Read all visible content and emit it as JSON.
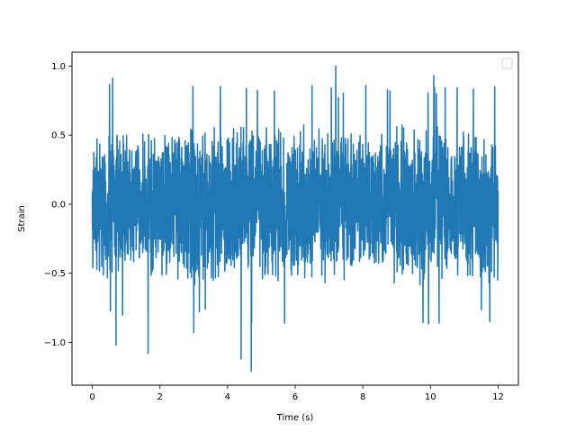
{
  "chart_data": {
    "type": "line",
    "title": "",
    "xlabel": "Time (s)",
    "ylabel": "Strain",
    "xlim": [
      -0.6,
      12.6
    ],
    "ylim": [
      -1.31,
      1.1
    ],
    "x_ticks": [
      0,
      2,
      4,
      6,
      8,
      10,
      12
    ],
    "y_ticks": [
      1.0,
      0.5,
      0.0,
      -0.5,
      -1.0
    ],
    "x_tick_labels": [
      "0",
      "2",
      "4",
      "6",
      "8",
      "10",
      "12"
    ],
    "y_tick_labels": [
      "1.0",
      "0.5",
      "0.0",
      "−0.5",
      "−1.0"
    ],
    "grid": false,
    "legend": {
      "placement": "top-right",
      "entries": []
    },
    "series": [
      {
        "color": "#1f77b4",
        "x_range": [
          0,
          12
        ],
        "sample_count": 2400,
        "typical_range": [
          -0.55,
          0.55
        ],
        "max_value": 1.0,
        "min_value": -1.21,
        "notable_extremes": [
          {
            "x": 0.6,
            "y": 0.91
          },
          {
            "x": 0.7,
            "y": -1.02
          },
          {
            "x": 1.65,
            "y": -1.08
          },
          {
            "x": 3.0,
            "y": -0.93
          },
          {
            "x": 4.4,
            "y": -1.12
          },
          {
            "x": 4.7,
            "y": -1.21
          },
          {
            "x": 7.2,
            "y": 1.0
          },
          {
            "x": 10.1,
            "y": 0.93
          },
          {
            "x": 11.9,
            "y": 0.85
          }
        ]
      }
    ]
  }
}
